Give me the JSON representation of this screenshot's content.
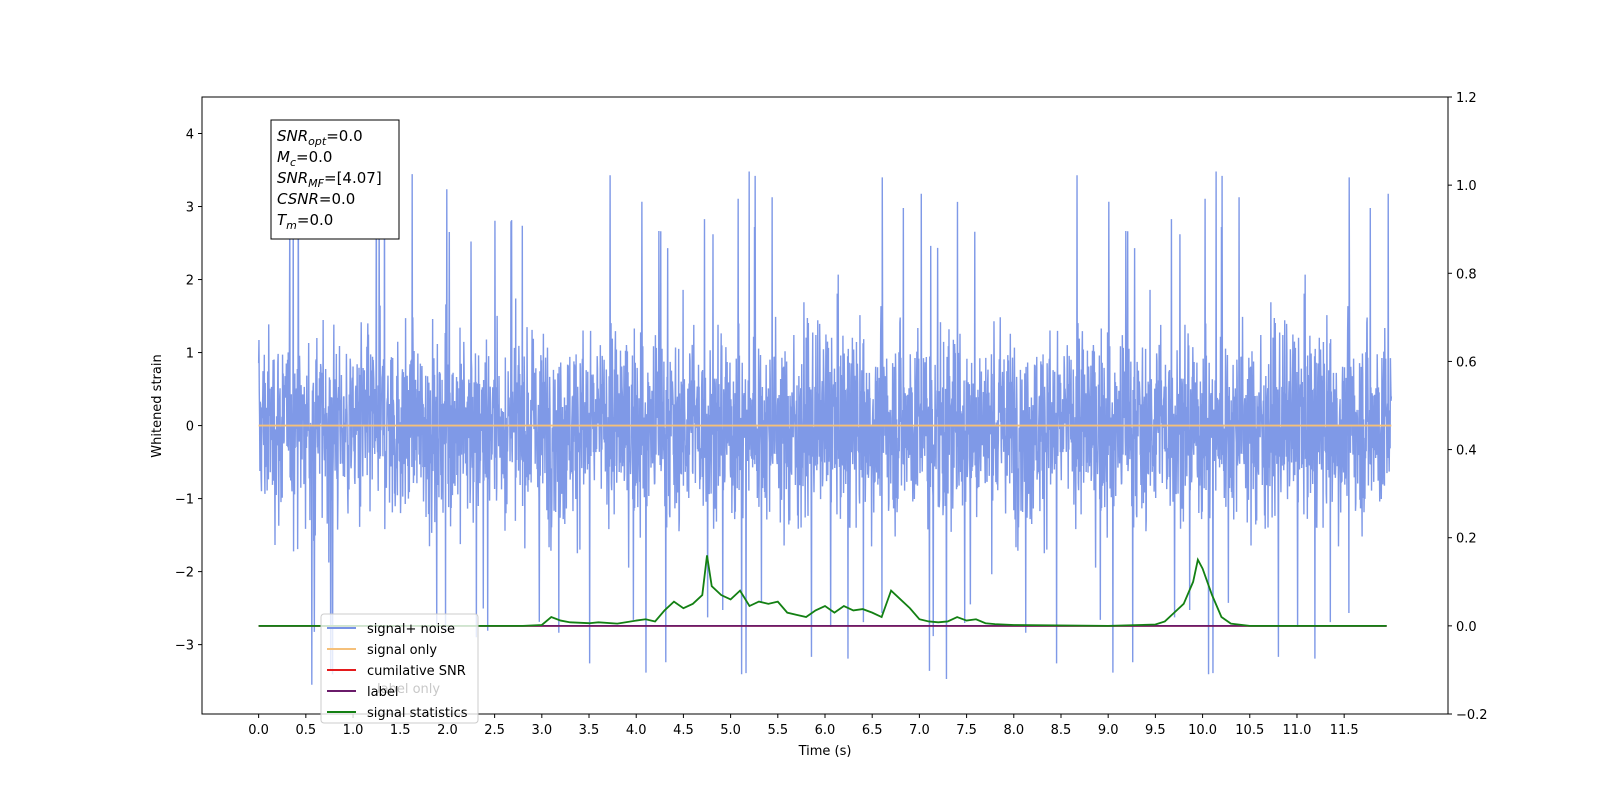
{
  "chart_data": {
    "type": "line",
    "xlabel": "Time (s)",
    "ylabel": "Whitened strain",
    "xlim": [
      -0.6,
      12.6
    ],
    "ylim": [
      -3.95,
      4.5
    ],
    "y2lim": [
      -0.2,
      1.2
    ],
    "x_ticks": [
      0.0,
      0.5,
      1.0,
      1.5,
      2.0,
      2.5,
      3.0,
      3.5,
      4.0,
      4.5,
      5.0,
      5.5,
      6.0,
      6.5,
      7.0,
      7.5,
      8.0,
      8.5,
      9.0,
      9.5,
      10.0,
      10.5,
      11.0,
      11.5
    ],
    "x_tick_labels": [
      "0.0",
      "0.5",
      "1.0",
      "1.5",
      "2.0",
      "2.5",
      "3.0",
      "3.5",
      "4.0",
      "4.5",
      "5.0",
      "5.5",
      "6.0",
      "6.5",
      "7.0",
      "7.5",
      "8.0",
      "8.5",
      "9.0",
      "9.5",
      "10.0",
      "10.5",
      "11.0",
      "11.5"
    ],
    "y_ticks": [
      -3,
      -2,
      -1,
      0,
      1,
      2,
      3,
      4
    ],
    "y_tick_labels": [
      "−3",
      "−2",
      "−1",
      "0",
      "1",
      "2",
      "3",
      "4"
    ],
    "y2_ticks": [
      -0.2,
      0.0,
      0.2,
      0.4,
      0.6,
      0.8,
      1.0,
      1.2
    ],
    "y2_tick_labels": [
      "−0.2",
      "0.0",
      "0.2",
      "0.4",
      "0.6",
      "0.8",
      "1.0",
      "1.2"
    ],
    "noise_envelope": {
      "description_x_range": [
        0.0,
        12.0
      ],
      "typical_amplitude": 2.0,
      "max_peak": 4.12,
      "min_peak": -3.55
    },
    "series": [
      {
        "name": "signal+ noise",
        "color": "#7893e6",
        "axis": "left",
        "kind": "noise",
        "x_range": [
          0.0,
          12.0
        ]
      },
      {
        "name": "signal only",
        "color": "#f5c07a",
        "axis": "left",
        "x": [
          0.0,
          12.0
        ],
        "y": [
          0.0,
          0.0
        ]
      },
      {
        "name": "cumilative SNR",
        "color": "#e41a1c",
        "axis": "right",
        "x": [
          0.0,
          11.95
        ],
        "y": [
          0.0,
          0.0
        ]
      },
      {
        "name": "label",
        "color": "#6a1b6a",
        "axis": "right",
        "x": [
          0.0,
          11.95
        ],
        "y": [
          0.0,
          0.0
        ]
      },
      {
        "name": "signal statistics",
        "color": "#138013",
        "axis": "right",
        "x": [
          0.0,
          2.8,
          3.0,
          3.1,
          3.2,
          3.3,
          3.5,
          3.6,
          3.8,
          4.0,
          4.1,
          4.2,
          4.3,
          4.4,
          4.5,
          4.6,
          4.7,
          4.75,
          4.8,
          4.9,
          5.0,
          5.1,
          5.2,
          5.3,
          5.4,
          5.5,
          5.6,
          5.7,
          5.8,
          5.9,
          6.0,
          6.1,
          6.2,
          6.3,
          6.4,
          6.5,
          6.6,
          6.7,
          6.8,
          6.9,
          7.0,
          7.1,
          7.2,
          7.3,
          7.4,
          7.5,
          7.6,
          7.7,
          7.8,
          8.0,
          9.0,
          9.5,
          9.6,
          9.7,
          9.8,
          9.9,
          9.95,
          10.0,
          10.1,
          10.2,
          10.3,
          10.5,
          11.95
        ],
        "y": [
          0.0,
          0.0,
          0.002,
          0.02,
          0.012,
          0.008,
          0.006,
          0.008,
          0.005,
          0.012,
          0.015,
          0.01,
          0.035,
          0.055,
          0.04,
          0.05,
          0.07,
          0.16,
          0.09,
          0.07,
          0.06,
          0.08,
          0.045,
          0.055,
          0.05,
          0.055,
          0.03,
          0.025,
          0.02,
          0.035,
          0.045,
          0.03,
          0.045,
          0.035,
          0.038,
          0.03,
          0.02,
          0.08,
          0.06,
          0.04,
          0.015,
          0.01,
          0.008,
          0.01,
          0.02,
          0.012,
          0.015,
          0.006,
          0.004,
          0.002,
          0.0,
          0.003,
          0.01,
          0.03,
          0.05,
          0.1,
          0.15,
          0.13,
          0.07,
          0.02,
          0.005,
          0.0,
          0.0
        ]
      }
    ],
    "legend": {
      "placement": "lower-left",
      "entries": [
        {
          "label": "signal+ noise",
          "color": "#7893e6"
        },
        {
          "label": "signal only",
          "color": "#f5c07a"
        },
        {
          "label": "cumilative SNR",
          "color": "#e41a1c"
        },
        {
          "label": "label",
          "color": "#6a1b6a"
        },
        {
          "label": "signal statistics",
          "color": "#138013"
        }
      ],
      "occluded_text": "label only"
    },
    "stats_box": {
      "placement": "top-left",
      "lines": [
        {
          "base": "SNR",
          "sub": "opt",
          "value": "=0.0"
        },
        {
          "base": "M",
          "sub": "c",
          "value": "=0.0"
        },
        {
          "base": "SNR",
          "sub": "MF",
          "value": "=[4.07]"
        },
        {
          "base": "CSNR",
          "sub": "",
          "value": "=0.0"
        },
        {
          "base": "T",
          "sub": "m",
          "value": "=0.0"
        }
      ]
    }
  }
}
